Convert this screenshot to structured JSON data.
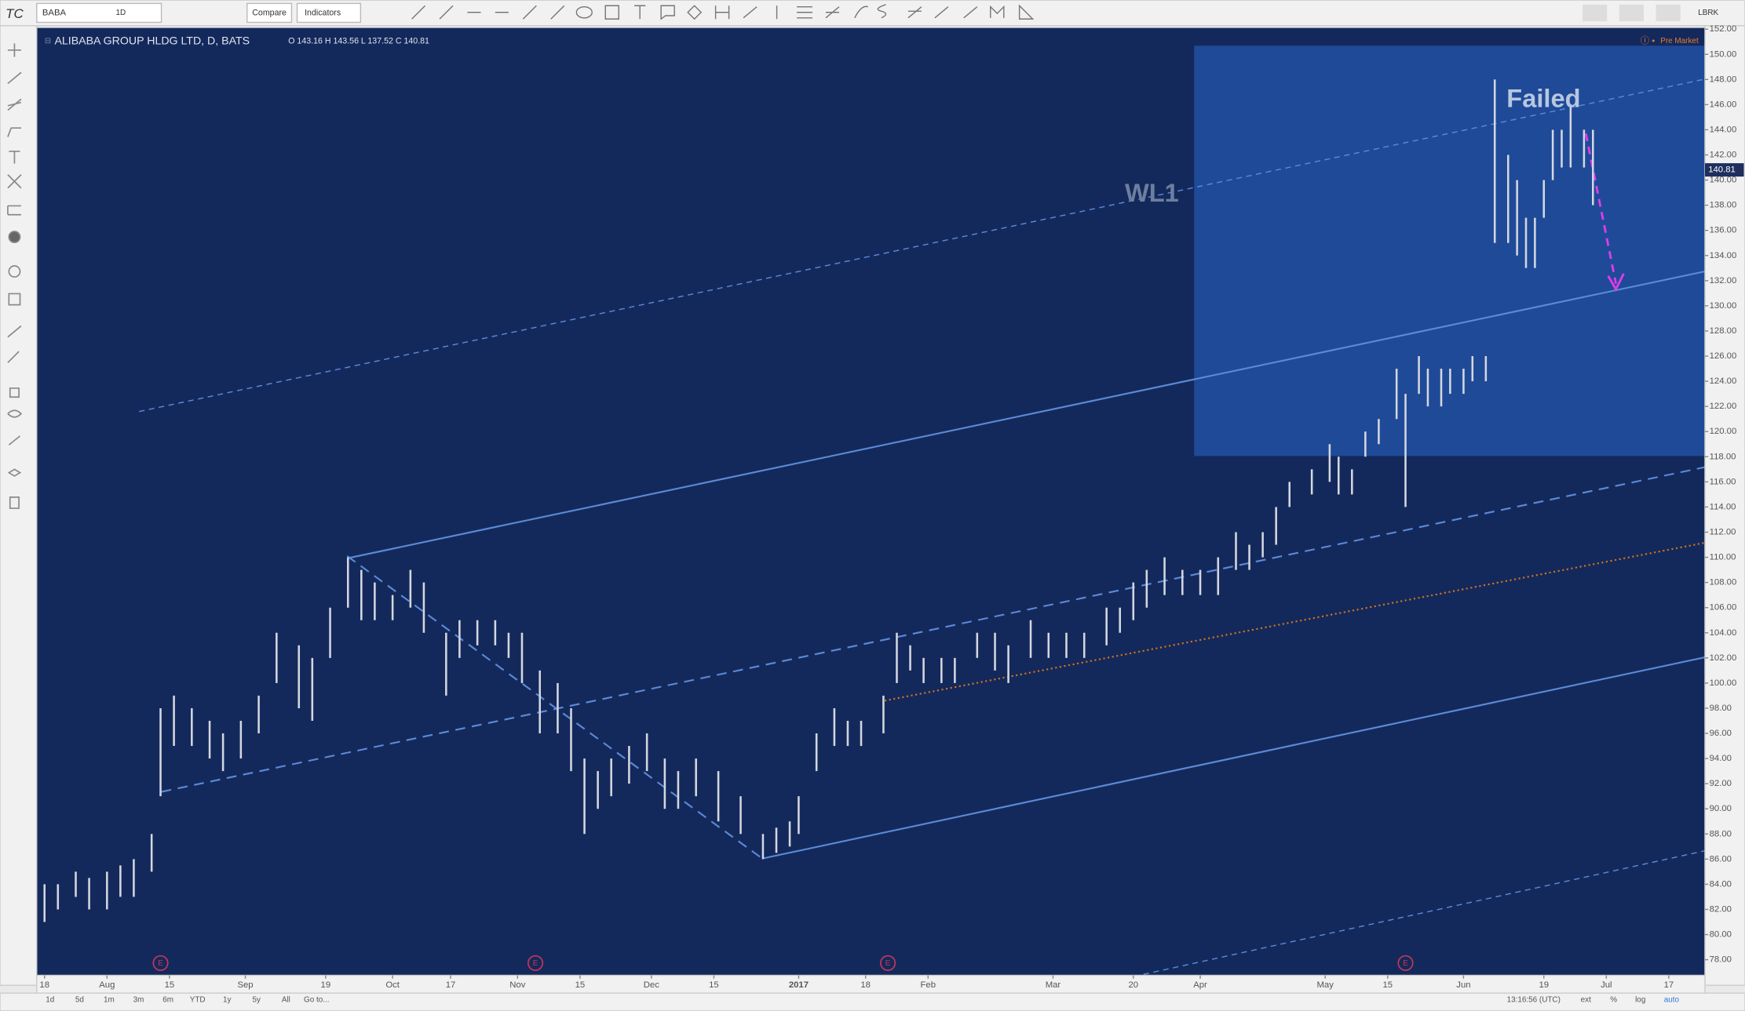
{
  "toolbar": {
    "symbol": "BABA",
    "interval": "1D",
    "compare": "Compare",
    "indicators": "Indicators",
    "account": "LBRK"
  },
  "chart_data": {
    "type": "ohlc",
    "title": "ALIBABA GROUP HLDG LTD, D, BATS",
    "ohlc_legend": "O 143.16 H 143.56 L 137.52 C 140.81",
    "status": "Pre Market",
    "annotations": [
      "WL1",
      "Failed"
    ],
    "color": "#d3d7df",
    "last_price": 140.81,
    "x": [
      0,
      3,
      7,
      10,
      14,
      17,
      20,
      24,
      26,
      29,
      33,
      37,
      40,
      44,
      48,
      52,
      57,
      60,
      64,
      68,
      71,
      74,
      78,
      82,
      85,
      90,
      93,
      97,
      101,
      104,
      107,
      111,
      115,
      118,
      121,
      124,
      127,
      131,
      135,
      139,
      142,
      146,
      151,
      156,
      161,
      164,
      167,
      169,
      173,
      177,
      180,
      183,
      188,
      191,
      194,
      197,
      201,
      204,
      209,
      213,
      216,
      221,
      225,
      229,
      233,
      238,
      241,
      244,
      247,
      251,
      255,
      259,
      263,
      267,
      270,
      273,
      276,
      279,
      284,
      288,
      290,
      293,
      296,
      299,
      303,
      305,
      308,
      310,
      313,
      315,
      318,
      320,
      323,
      325,
      328,
      330,
      332,
      334,
      336,
      338,
      340,
      342,
      345,
      347
    ],
    "high": [
      84,
      84,
      85,
      84.5,
      85,
      85.5,
      86,
      88,
      98,
      99,
      98,
      97,
      96,
      97,
      99,
      104,
      103,
      102,
      106,
      110,
      109,
      108,
      107,
      109,
      108,
      104,
      105,
      105,
      105,
      104,
      104,
      101,
      100,
      98,
      94,
      93,
      94,
      95,
      96,
      94,
      93,
      94,
      93,
      91,
      88,
      88.5,
      89,
      91,
      96,
      98,
      97,
      97,
      99,
      104,
      103,
      102,
      102,
      102,
      104,
      104,
      103,
      105,
      104,
      104,
      104,
      106,
      106,
      108,
      109,
      110,
      109,
      109,
      110,
      112,
      111,
      112,
      114,
      116,
      117,
      119,
      118,
      117,
      120,
      121,
      125,
      123,
      126,
      125,
      125,
      125,
      125,
      126,
      126,
      148,
      142,
      140,
      137,
      137,
      140,
      144,
      144,
      146,
      144,
      144
    ],
    "low": [
      81,
      82,
      83,
      82,
      82,
      83,
      83,
      85,
      91,
      95,
      95,
      94,
      93,
      94,
      96,
      100,
      98,
      97,
      102,
      106,
      105,
      105,
      105,
      106,
      104,
      99,
      102,
      103,
      103,
      102,
      100,
      96,
      96,
      93,
      88,
      90,
      91,
      92,
      93,
      90,
      90,
      91,
      89,
      88,
      86,
      86.5,
      87,
      88,
      93,
      95,
      95,
      95,
      96,
      100,
      101,
      100,
      100,
      100,
      102,
      101,
      100,
      102,
      102,
      102,
      102,
      103,
      104,
      105,
      106,
      107,
      107,
      107,
      107,
      109,
      109,
      110,
      111,
      114,
      115,
      116,
      115,
      115,
      118,
      119,
      121,
      114,
      123,
      122,
      122,
      123,
      123,
      124,
      124,
      135,
      135,
      134,
      133,
      133,
      137,
      140,
      141,
      141,
      141,
      138
    ],
    "event_markers": {
      "x": [
        26,
        110,
        189,
        305
      ],
      "label": "E"
    },
    "xlim": [
      -1.75,
      372.1
    ],
    "ylim": [
      76.76,
      152.1
    ],
    "xticks": [
      {
        "value": 0,
        "label": "18"
      },
      {
        "value": 14,
        "label": "Aug"
      },
      {
        "value": 28,
        "label": "15"
      },
      {
        "value": 45,
        "label": "Sep"
      },
      {
        "value": 63,
        "label": "19"
      },
      {
        "value": 78,
        "label": "Oct"
      },
      {
        "value": 91,
        "label": "17"
      },
      {
        "value": 106,
        "label": "Nov"
      },
      {
        "value": 120,
        "label": "15"
      },
      {
        "value": 136,
        "label": "Dec"
      },
      {
        "value": 150,
        "label": "15"
      },
      {
        "value": 169,
        "label": "2017"
      },
      {
        "value": 184,
        "label": "18"
      },
      {
        "value": 198,
        "label": "Feb"
      },
      {
        "value": 226,
        "label": "Mar"
      },
      {
        "value": 244,
        "label": "20"
      },
      {
        "value": 259,
        "label": "Apr"
      },
      {
        "value": 287,
        "label": "May"
      },
      {
        "value": 301,
        "label": "15"
      },
      {
        "value": 318,
        "label": "Jun"
      },
      {
        "value": 336,
        "label": "19"
      },
      {
        "value": 350,
        "label": "Jul"
      },
      {
        "value": 364,
        "label": "17"
      }
    ],
    "yticks": [
      {
        "value": 78,
        "label": "78.00"
      },
      {
        "value": 80,
        "label": "80.00"
      },
      {
        "value": 82,
        "label": "82.00"
      },
      {
        "value": 84,
        "label": "84.00"
      },
      {
        "value": 86,
        "label": "86.00"
      },
      {
        "value": 88,
        "label": "88.00"
      },
      {
        "value": 90,
        "label": "90.00"
      },
      {
        "value": 92,
        "label": "92.00"
      },
      {
        "value": 94,
        "label": "94.00"
      },
      {
        "value": 96,
        "label": "96.00"
      },
      {
        "value": 98,
        "label": "98.00"
      },
      {
        "value": 100,
        "label": "100.00"
      },
      {
        "value": 102,
        "label": "102.00"
      },
      {
        "value": 104,
        "label": "104.00"
      },
      {
        "value": 106,
        "label": "106.00"
      },
      {
        "value": 108,
        "label": "108.00"
      },
      {
        "value": 110,
        "label": "110.00"
      },
      {
        "value": 112,
        "label": "112.00"
      },
      {
        "value": 114,
        "label": "114.00"
      },
      {
        "value": 116,
        "label": "116.00"
      },
      {
        "value": 118,
        "label": "118.00"
      },
      {
        "value": 120,
        "label": "120.00"
      },
      {
        "value": 122,
        "label": "122.00"
      },
      {
        "value": 124,
        "label": "124.00"
      },
      {
        "value": 126,
        "label": "126.00"
      },
      {
        "value": 128,
        "label": "128.00"
      },
      {
        "value": 130,
        "label": "130.00"
      },
      {
        "value": 132,
        "label": "132.00"
      },
      {
        "value": 134,
        "label": "134.00"
      },
      {
        "value": 136,
        "label": "136.00"
      },
      {
        "value": 138,
        "label": "138.00"
      },
      {
        "value": 140,
        "label": "140.00"
      },
      {
        "value": 142,
        "label": "142.00"
      },
      {
        "value": 144,
        "label": "144.00"
      },
      {
        "value": 146,
        "label": "146.00"
      },
      {
        "value": 148,
        "label": "148.00"
      },
      {
        "value": 150,
        "label": "150.00"
      },
      {
        "value": 152,
        "label": "152.00"
      }
    ]
  },
  "bottom_bar": {
    "ranges": [
      "1d",
      "5d",
      "1m",
      "3m",
      "6m",
      "YTD",
      "1y",
      "5y",
      "All"
    ],
    "goto": "Go to...",
    "time": "13:16:56 (UTC)",
    "options": [
      "ext",
      "%",
      "log",
      "auto"
    ]
  }
}
